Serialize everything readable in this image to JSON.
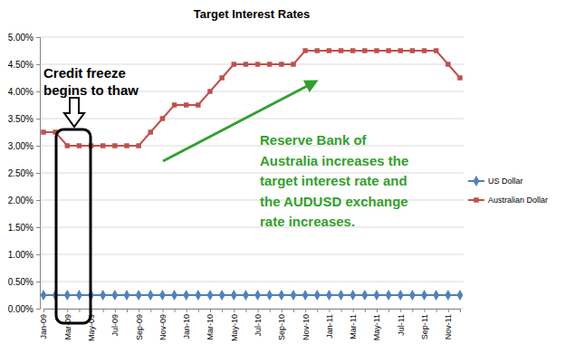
{
  "chart_data": {
    "type": "line",
    "title": "Target Interest Rates",
    "categories": [
      "Jan-09",
      null,
      "Mar-09",
      null,
      "May-09",
      null,
      "Jul-09",
      null,
      "Sep-09",
      null,
      "Nov-09",
      null,
      "Jan-10",
      null,
      "Mar-10",
      null,
      "May-10",
      null,
      "Jul-10",
      null,
      "Sep-10",
      null,
      "Nov-10",
      null,
      "Jan-11",
      null,
      "Mar-11",
      null,
      "May-11",
      null,
      "Jul-11",
      null,
      "Sep-11",
      null,
      "Nov-11",
      null
    ],
    "series": [
      {
        "name": "US Dollar",
        "color": "#4f81bd",
        "marker": "diamond",
        "values": [
          0.25,
          0.25,
          0.25,
          0.25,
          0.25,
          0.25,
          0.25,
          0.25,
          0.25,
          0.25,
          0.25,
          0.25,
          0.25,
          0.25,
          0.25,
          0.25,
          0.25,
          0.25,
          0.25,
          0.25,
          0.25,
          0.25,
          0.25,
          0.25,
          0.25,
          0.25,
          0.25,
          0.25,
          0.25,
          0.25,
          0.25,
          0.25,
          0.25,
          0.25,
          0.25,
          0.25
        ]
      },
      {
        "name": "Australian Dollar",
        "color": "#c0504d",
        "marker": "square",
        "values": [
          3.25,
          3.25,
          3.0,
          3.0,
          3.0,
          3.0,
          3.0,
          3.0,
          3.0,
          3.25,
          3.5,
          3.75,
          3.75,
          3.75,
          4.0,
          4.25,
          4.5,
          4.5,
          4.5,
          4.5,
          4.5,
          4.5,
          4.75,
          4.75,
          4.75,
          4.75,
          4.75,
          4.75,
          4.75,
          4.75,
          4.75,
          4.75,
          4.75,
          4.75,
          4.5,
          4.25
        ]
      }
    ],
    "ylim": [
      0,
      5
    ],
    "yticks": [
      {
        "value": 0,
        "label": "0.00%"
      },
      {
        "value": 0.5,
        "label": "0.50%"
      },
      {
        "value": 1,
        "label": "1.00%"
      },
      {
        "value": 1.5,
        "label": "1.50%"
      },
      {
        "value": 2,
        "label": "2.00%"
      },
      {
        "value": 2.5,
        "label": "2.50%"
      },
      {
        "value": 3,
        "label": "3.00%"
      },
      {
        "value": 3.5,
        "label": "3.50%"
      },
      {
        "value": 4,
        "label": "4.00%"
      },
      {
        "value": 4.5,
        "label": "4.50%"
      },
      {
        "value": 5,
        "label": "5.00%"
      }
    ],
    "grid": true,
    "legend": "right",
    "annotations": [
      {
        "text": [
          "Credit freeze",
          "begins to thaw"
        ],
        "color": "#000000"
      },
      {
        "text": [
          "Reserve Bank of",
          "Australia increases the",
          "target interest rate and",
          "the AUDUSD exchange",
          "rate increases."
        ],
        "color": "#33a02c"
      }
    ]
  }
}
